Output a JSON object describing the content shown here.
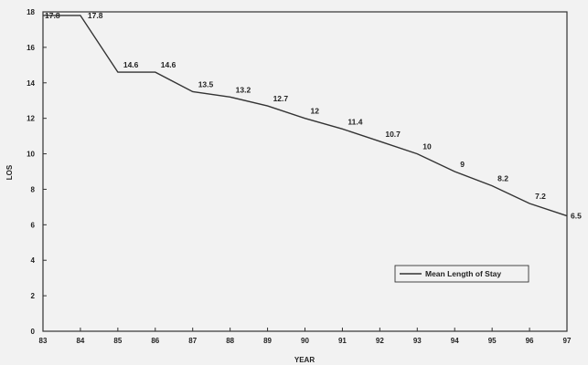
{
  "chart_data": {
    "type": "line",
    "x": [
      "83",
      "84",
      "85",
      "86",
      "87",
      "88",
      "89",
      "90",
      "91",
      "92",
      "93",
      "94",
      "95",
      "96",
      "97"
    ],
    "x_tick_labels": [
      "83",
      "84",
      "85",
      "86",
      "87",
      "88",
      "89",
      "90",
      "91",
      "92",
      "93",
      "94",
      "95",
      "96",
      "97"
    ],
    "series": [
      {
        "name": "Mean Length of Stay",
        "values": [
          17.8,
          17.8,
          14.6,
          14.6,
          13.5,
          13.2,
          12.7,
          12,
          11.4,
          10.7,
          10,
          9,
          8.2,
          7.2,
          6.5
        ],
        "labels": [
          "17.8",
          "17.8",
          "14.6",
          "14.6",
          "13.5",
          "13.2",
          "12.7",
          "12",
          "11.4",
          "10.7",
          "10",
          "9",
          "8.2",
          "7.2",
          "6.5"
        ]
      }
    ],
    "xlabel": "YEAR",
    "ylabel": "LOS",
    "ylim": [
      0,
      18
    ],
    "yticks": [
      "0",
      "2",
      "4",
      "6",
      "8",
      "10",
      "12",
      "14",
      "16",
      "18"
    ],
    "grid": false,
    "legend_position": "lower-right",
    "colors": {
      "line": "#333333",
      "axis": "#333333",
      "background": "#f2f2f2"
    }
  }
}
